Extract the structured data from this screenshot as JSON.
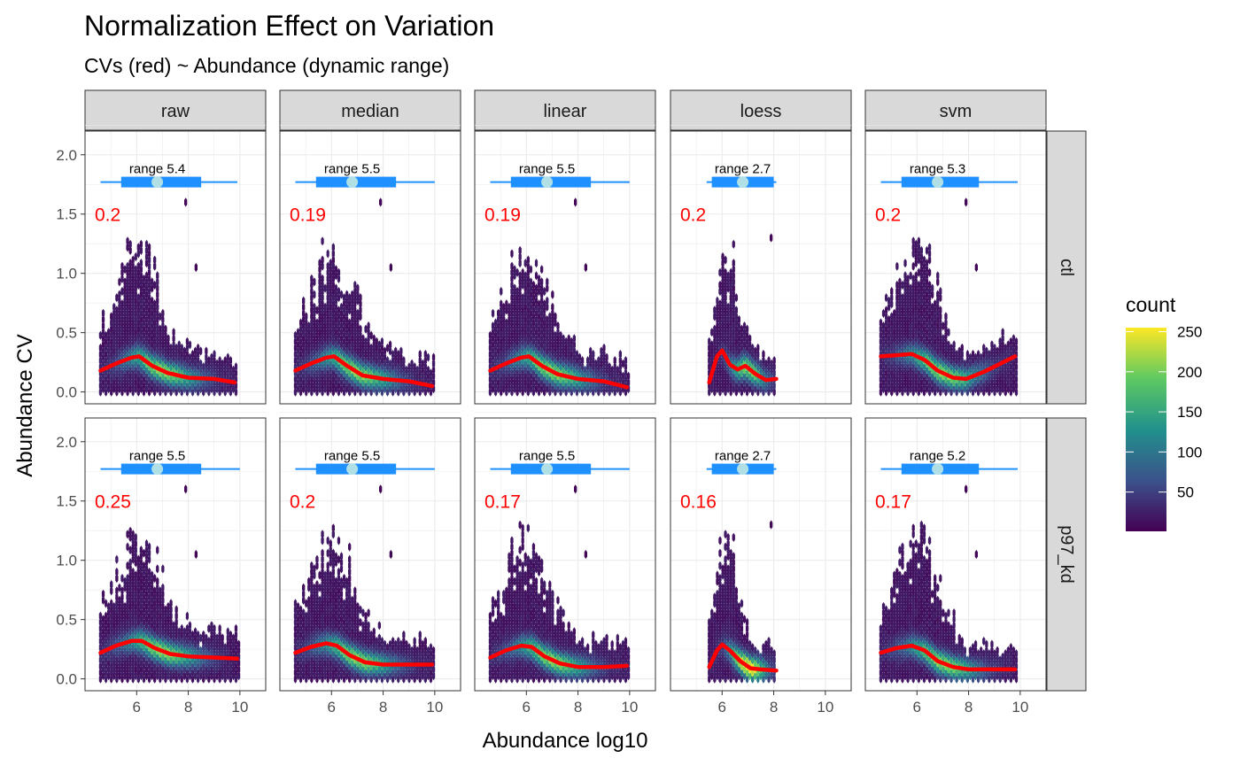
{
  "chart_data": {
    "type": "heatmap",
    "title": "Normalization Effect on Variation",
    "subtitle": "CVs (red) ~ Abundance (dynamic range)",
    "xlabel": "Abundance log10",
    "ylabel": "Abundance CV",
    "xlim": [
      4.0,
      11.0
    ],
    "ylim": [
      -0.1,
      2.2
    ],
    "x_ticks": [
      6,
      8,
      10
    ],
    "y_ticks": [
      0.0,
      0.5,
      1.0,
      1.5,
      2.0
    ],
    "y_tick_labels": [
      "0.0",
      "0.5",
      "1.0",
      "1.5",
      "2.0"
    ],
    "grid": true,
    "columns": [
      "raw",
      "median",
      "linear",
      "loess",
      "svm"
    ],
    "rows": [
      "ctl",
      "p97_kd"
    ],
    "legend": {
      "title": "count",
      "ticks": [
        50,
        100,
        150,
        200,
        250
      ],
      "min": 1,
      "max": 255,
      "colors": [
        "#440154",
        "#3b528b",
        "#21918c",
        "#5ec962",
        "#fde725"
      ],
      "position": "right"
    },
    "range_bar_color": "#1e90ff",
    "range_point_color": "#b0e0e6",
    "trend_color": "#ff0000",
    "panels": [
      {
        "row": "ctl",
        "col": "raw",
        "cv_label": "0.2",
        "range_label": "range 5.4",
        "range": [
          4.6,
          9.9
        ],
        "iqr": [
          5.4,
          8.5
        ],
        "median": 6.8,
        "xmin": 4.6,
        "xmax": 9.9,
        "trend": [
          [
            4.6,
            0.18
          ],
          [
            5.2,
            0.24
          ],
          [
            5.8,
            0.29
          ],
          [
            6.1,
            0.3
          ],
          [
            6.6,
            0.22
          ],
          [
            7.2,
            0.16
          ],
          [
            8.0,
            0.12
          ],
          [
            9.0,
            0.11
          ],
          [
            9.8,
            0.08
          ]
        ]
      },
      {
        "row": "ctl",
        "col": "median",
        "cv_label": "0.19",
        "range_label": "range 5.5",
        "range": [
          4.6,
          10.0
        ],
        "iqr": [
          5.4,
          8.5
        ],
        "median": 6.8,
        "xmin": 4.6,
        "xmax": 10.0,
        "trend": [
          [
            4.6,
            0.18
          ],
          [
            5.2,
            0.24
          ],
          [
            5.8,
            0.29
          ],
          [
            6.1,
            0.3
          ],
          [
            6.6,
            0.22
          ],
          [
            7.2,
            0.14
          ],
          [
            8.0,
            0.11
          ],
          [
            9.0,
            0.09
          ],
          [
            9.9,
            0.05
          ]
        ]
      },
      {
        "row": "ctl",
        "col": "linear",
        "cv_label": "0.19",
        "range_label": "range 5.5",
        "range": [
          4.6,
          10.0
        ],
        "iqr": [
          5.4,
          8.5
        ],
        "median": 6.8,
        "xmin": 4.6,
        "xmax": 10.0,
        "trend": [
          [
            4.6,
            0.18
          ],
          [
            5.2,
            0.24
          ],
          [
            5.8,
            0.29
          ],
          [
            6.1,
            0.3
          ],
          [
            6.6,
            0.22
          ],
          [
            7.2,
            0.15
          ],
          [
            8.0,
            0.11
          ],
          [
            9.0,
            0.09
          ],
          [
            9.9,
            0.04
          ]
        ]
      },
      {
        "row": "ctl",
        "col": "loess",
        "cv_label": "0.2",
        "range_label": "range 2.7",
        "range": [
          5.4,
          8.1
        ],
        "iqr": [
          5.6,
          8.0
        ],
        "median": 6.8,
        "xmin": 5.5,
        "xmax": 8.1,
        "trend": [
          [
            5.5,
            0.08
          ],
          [
            5.8,
            0.3
          ],
          [
            6.0,
            0.35
          ],
          [
            6.3,
            0.23
          ],
          [
            6.6,
            0.19
          ],
          [
            6.9,
            0.22
          ],
          [
            7.3,
            0.15
          ],
          [
            7.7,
            0.1
          ],
          [
            8.1,
            0.11
          ]
        ]
      },
      {
        "row": "ctl",
        "col": "svm",
        "cv_label": "0.2",
        "range_label": "range 5.3",
        "range": [
          4.6,
          9.9
        ],
        "iqr": [
          5.4,
          8.4
        ],
        "median": 6.8,
        "xmin": 4.6,
        "xmax": 9.9,
        "trend": [
          [
            4.6,
            0.3
          ],
          [
            5.2,
            0.31
          ],
          [
            5.8,
            0.32
          ],
          [
            6.3,
            0.27
          ],
          [
            6.8,
            0.18
          ],
          [
            7.4,
            0.12
          ],
          [
            7.9,
            0.11
          ],
          [
            8.6,
            0.17
          ],
          [
            9.8,
            0.3
          ]
        ]
      },
      {
        "row": "p97_kd",
        "col": "raw",
        "cv_label": "0.25",
        "range_label": "range 5.5",
        "range": [
          4.6,
          10.0
        ],
        "iqr": [
          5.4,
          8.5
        ],
        "median": 6.8,
        "xmin": 4.6,
        "xmax": 10.0,
        "trend": [
          [
            4.6,
            0.22
          ],
          [
            5.2,
            0.28
          ],
          [
            5.8,
            0.32
          ],
          [
            6.2,
            0.32
          ],
          [
            6.7,
            0.26
          ],
          [
            7.3,
            0.21
          ],
          [
            8.0,
            0.19
          ],
          [
            9.0,
            0.18
          ],
          [
            9.9,
            0.17
          ]
        ]
      },
      {
        "row": "p97_kd",
        "col": "median",
        "cv_label": "0.2",
        "range_label": "range 5.5",
        "range": [
          4.6,
          10.0
        ],
        "iqr": [
          5.4,
          8.5
        ],
        "median": 6.8,
        "xmin": 4.6,
        "xmax": 10.0,
        "trend": [
          [
            4.6,
            0.22
          ],
          [
            5.2,
            0.27
          ],
          [
            5.8,
            0.3
          ],
          [
            6.2,
            0.28
          ],
          [
            6.7,
            0.2
          ],
          [
            7.3,
            0.14
          ],
          [
            8.0,
            0.12
          ],
          [
            9.0,
            0.12
          ],
          [
            9.9,
            0.12
          ]
        ]
      },
      {
        "row": "p97_kd",
        "col": "linear",
        "cv_label": "0.17",
        "range_label": "range 5.5",
        "range": [
          4.6,
          10.0
        ],
        "iqr": [
          5.4,
          8.5
        ],
        "median": 6.8,
        "xmin": 4.6,
        "xmax": 10.0,
        "trend": [
          [
            4.6,
            0.18
          ],
          [
            5.2,
            0.24
          ],
          [
            5.8,
            0.28
          ],
          [
            6.2,
            0.27
          ],
          [
            6.7,
            0.19
          ],
          [
            7.3,
            0.13
          ],
          [
            8.0,
            0.1
          ],
          [
            9.0,
            0.1
          ],
          [
            9.9,
            0.11
          ]
        ]
      },
      {
        "row": "p97_kd",
        "col": "loess",
        "cv_label": "0.16",
        "range_label": "range 2.7",
        "range": [
          5.4,
          8.1
        ],
        "iqr": [
          5.6,
          8.0
        ],
        "median": 6.8,
        "xmin": 5.5,
        "xmax": 8.1,
        "trend": [
          [
            5.5,
            0.1
          ],
          [
            5.8,
            0.24
          ],
          [
            6.0,
            0.29
          ],
          [
            6.3,
            0.24
          ],
          [
            6.7,
            0.15
          ],
          [
            7.1,
            0.09
          ],
          [
            7.5,
            0.08
          ],
          [
            8.1,
            0.07
          ]
        ]
      },
      {
        "row": "p97_kd",
        "col": "svm",
        "cv_label": "0.17",
        "range_label": "range 5.2",
        "range": [
          4.6,
          9.9
        ],
        "iqr": [
          5.4,
          8.4
        ],
        "median": 6.8,
        "xmin": 4.6,
        "xmax": 9.9,
        "trend": [
          [
            4.6,
            0.22
          ],
          [
            5.2,
            0.26
          ],
          [
            5.8,
            0.28
          ],
          [
            6.3,
            0.24
          ],
          [
            6.8,
            0.15
          ],
          [
            7.4,
            0.1
          ],
          [
            8.0,
            0.08
          ],
          [
            9.0,
            0.08
          ],
          [
            9.8,
            0.08
          ]
        ]
      }
    ]
  }
}
